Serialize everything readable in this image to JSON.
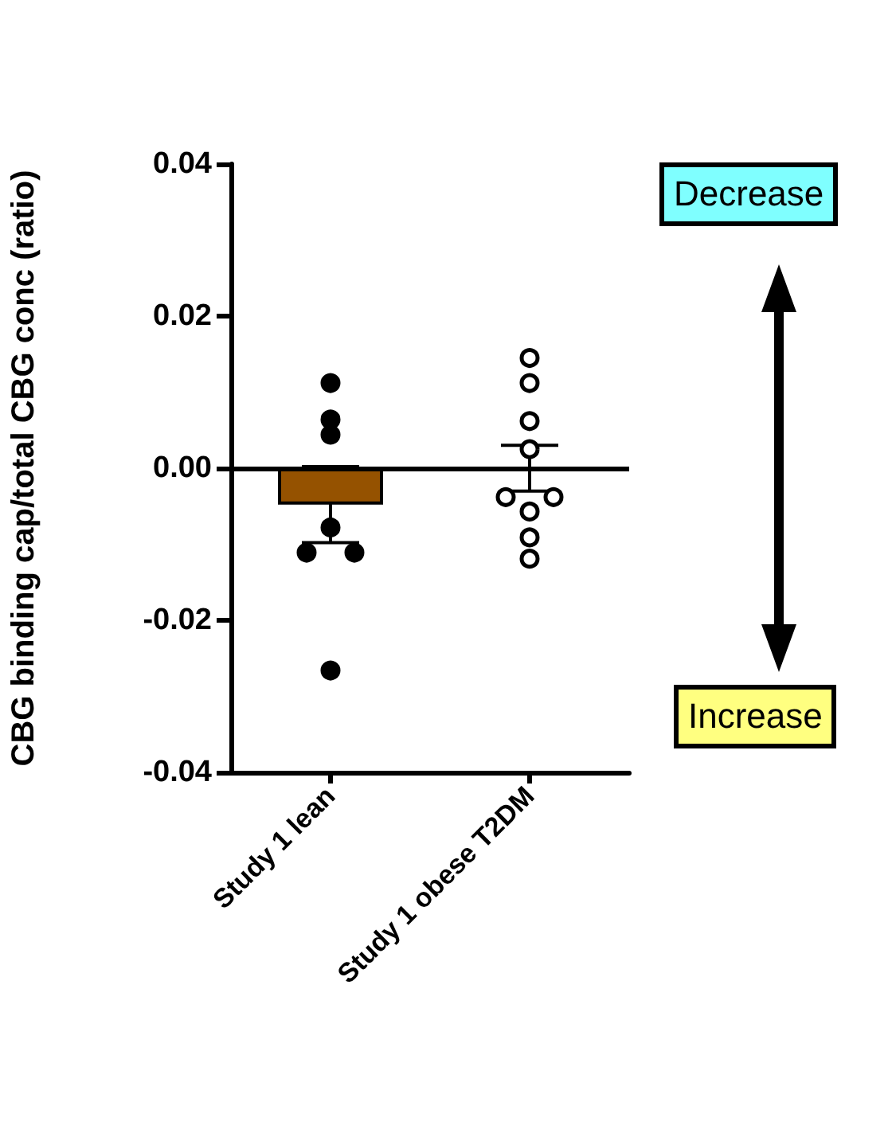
{
  "chart_data": {
    "type": "bar",
    "ylabel": "CBG binding cap/total CBG conc (ratio)",
    "categories": [
      "Study 1 lean",
      "Study 1 obese T2DM"
    ],
    "series": [
      {
        "colors": [
          "#955200",
          "#ffffff"
        ],
        "values": [
          -0.0048,
          0
        ],
        "errors": [
          0.005,
          0.003
        ]
      },
      {
        "type": "scatter",
        "color": "#000000",
        "x": [
          "Study 1 lean",
          "Study 1 lean",
          "Study 1 lean",
          "Study 1 lean",
          "Study 1 lean",
          "Study 1 lean",
          "Study 1 lean"
        ],
        "values": [
          0.0112,
          0.0064,
          0.0044,
          -0.0078,
          -0.0111,
          -0.0111,
          -0.0266
        ]
      },
      {
        "type": "scatter",
        "color": "#ffffff",
        "x": [
          "Study 1 obese T2DM",
          "Study 1 obese T2DM",
          "Study 1 obese T2DM",
          "Study 1 obese T2DM",
          "Study 1 obese T2DM",
          "Study 1 obese T2DM",
          "Study 1 obese T2DM",
          "Study 1 obese T2DM",
          "Study 1 obese T2DM"
        ],
        "values": [
          0.0145,
          0.0112,
          0.0062,
          0.0025,
          -0.0038,
          -0.0038,
          -0.0057,
          -0.0091,
          -0.0119
        ]
      }
    ],
    "ylim": [
      -0.04,
      0.04
    ],
    "yticks": [
      -0.04,
      -0.02,
      {
        "value": 0,
        "label": "0.00"
      },
      0.02,
      0.04
    ],
    "ref_lines": [
      {
        "axis": "y",
        "value": 0,
        "color": "#000000"
      }
    ],
    "marker": "circle",
    "annotations": [
      "Decrease",
      "Increase"
    ]
  }
}
